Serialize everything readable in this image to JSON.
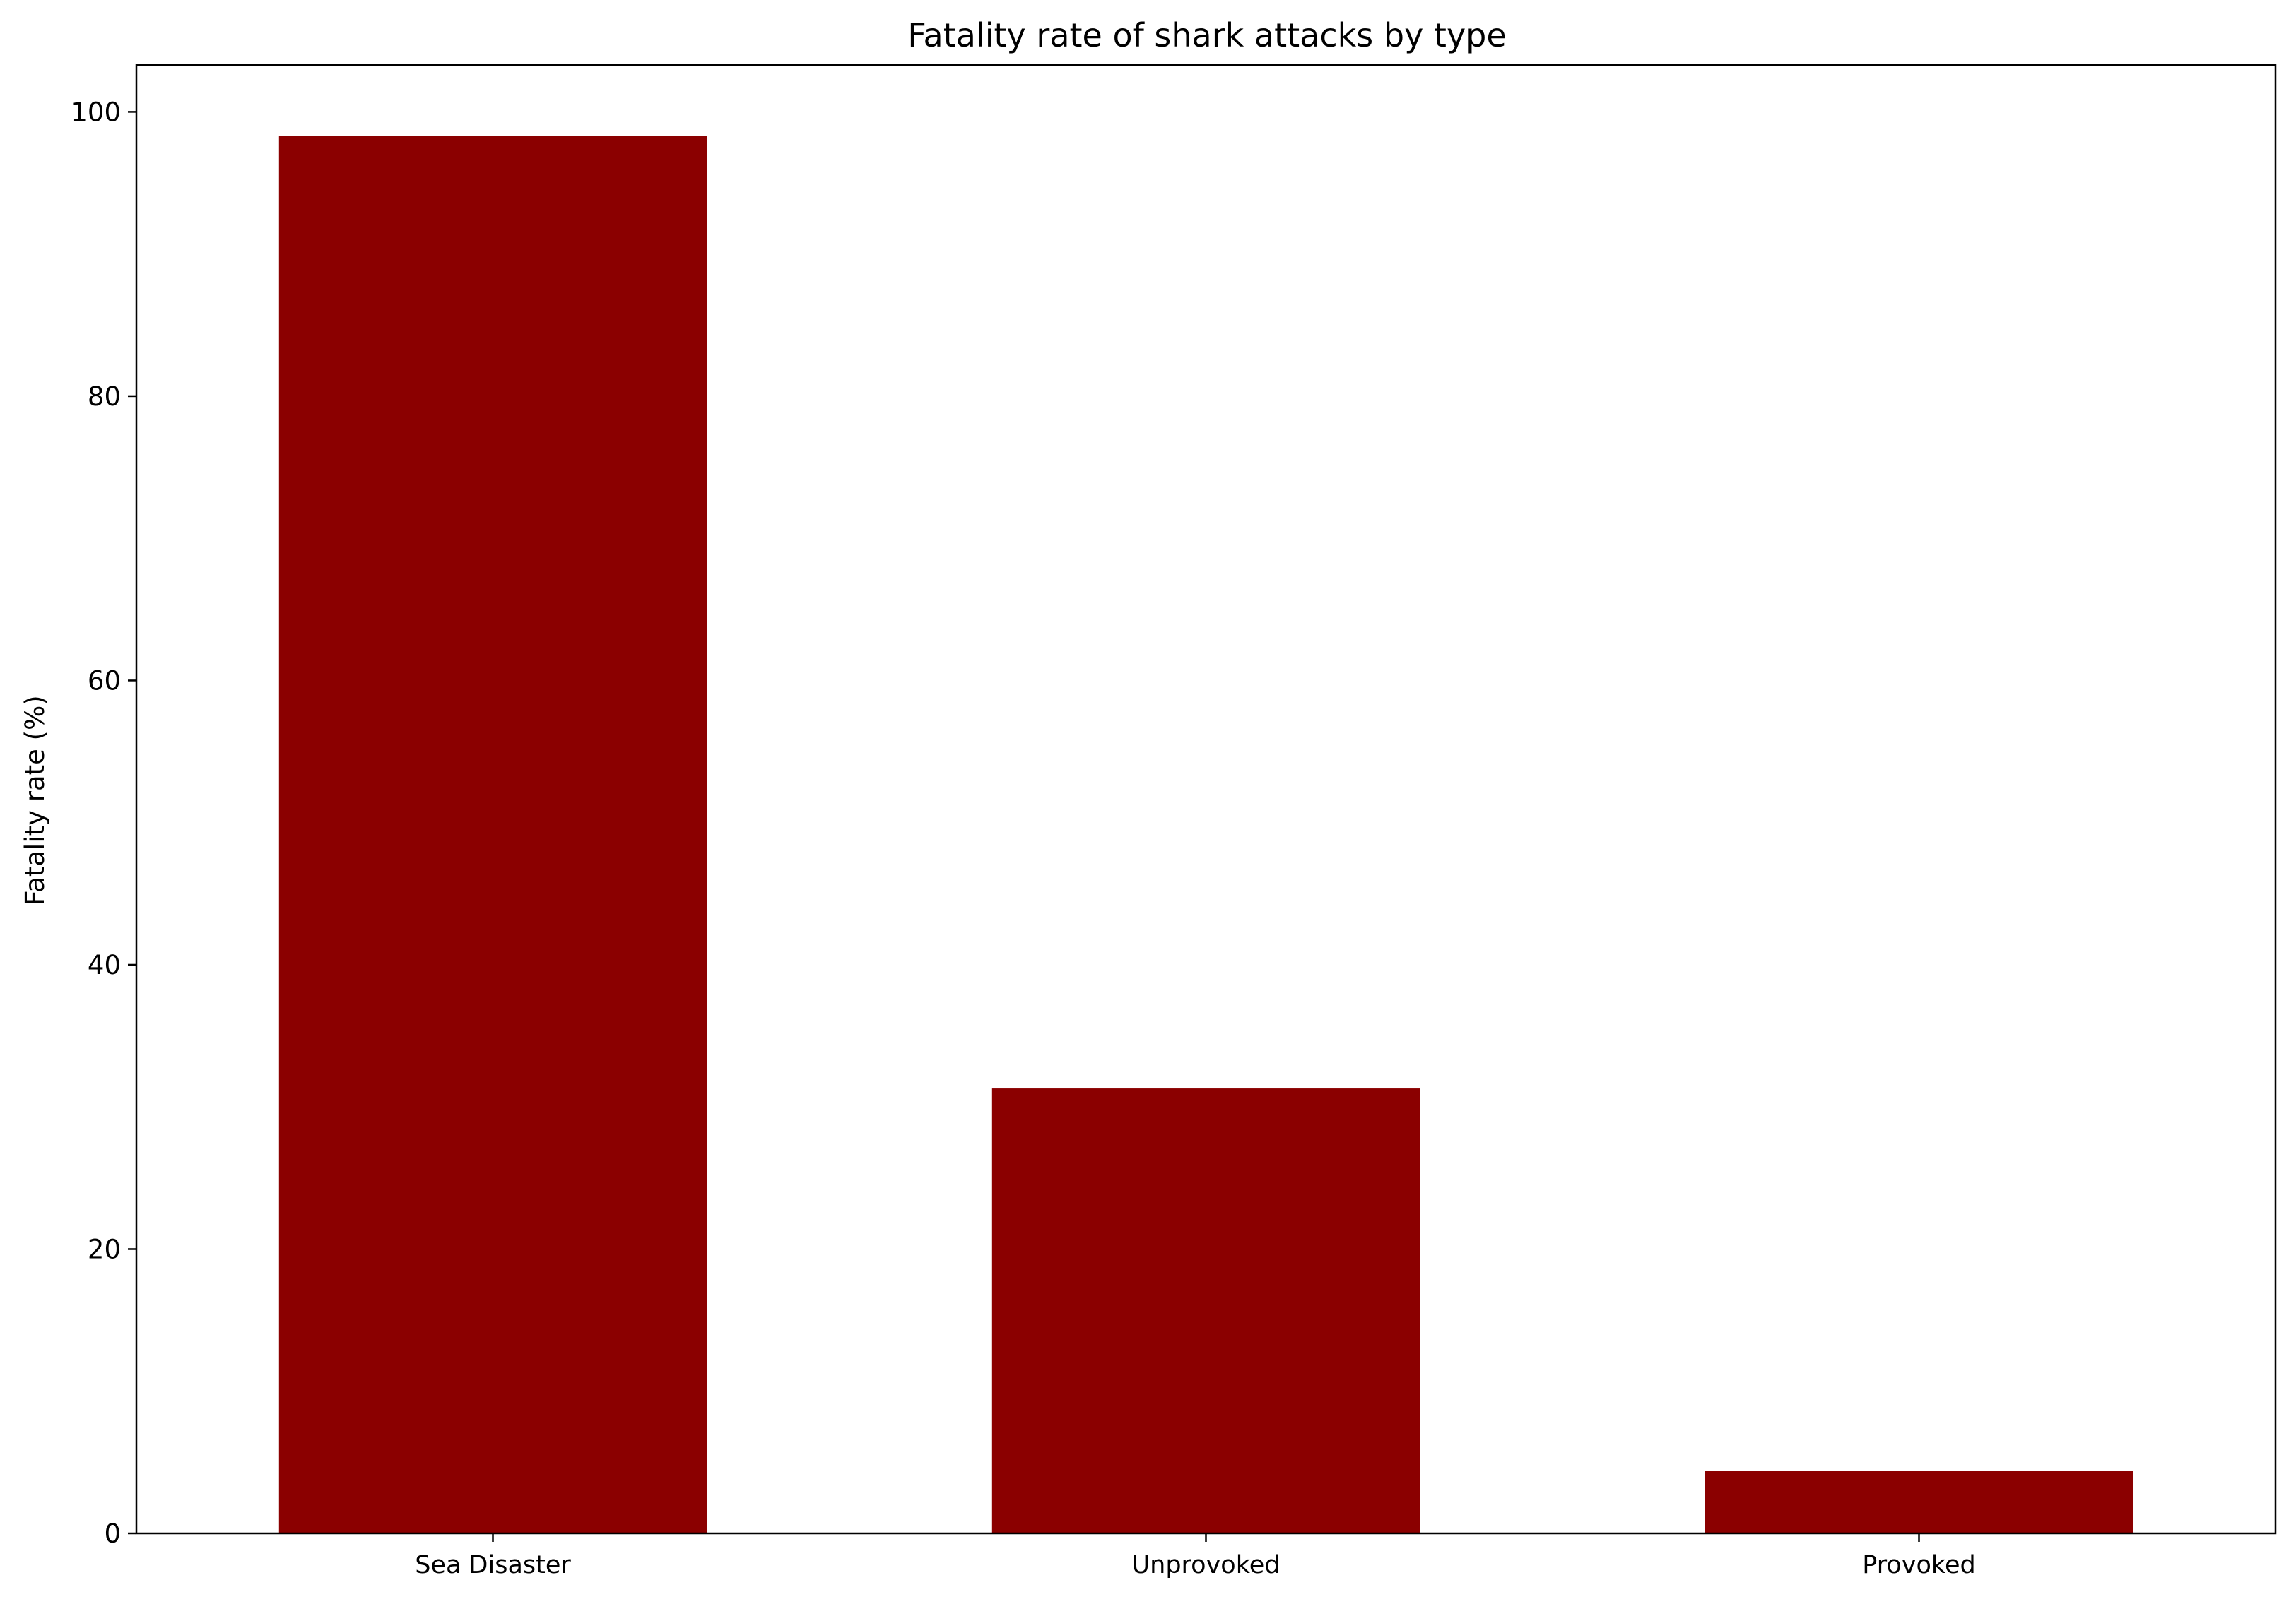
{
  "chart_data": {
    "type": "bar",
    "title": "Fatality rate of shark attacks by type",
    "xlabel": "",
    "ylabel": "Fatality rate (%)",
    "categories": [
      "Sea Disaster",
      "Unprovoked",
      "Provoked"
    ],
    "values": [
      98.3,
      31.3,
      4.4
    ],
    "ylim": [
      0,
      103.3
    ],
    "yticks": [
      0,
      20,
      40,
      60,
      80,
      100
    ],
    "grid": false,
    "legend": "none",
    "bar_color": "#8b0000"
  }
}
